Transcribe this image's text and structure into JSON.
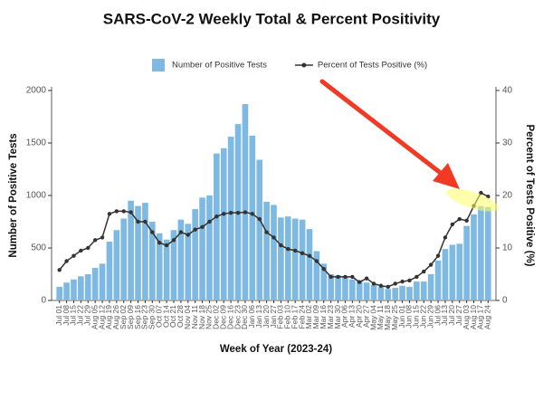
{
  "chart_data": {
    "type": "bar_line",
    "title": "SARS-CoV-2 Weekly Total & Percent Positivity",
    "x_label": "Week of Year (2023-24)",
    "y_label": "Number of Positive Tests",
    "y2_label": "Percent of Tests Positive (%)",
    "categories": [
      "Jul 01",
      "Jul 08",
      "Jul 15",
      "Jul 22",
      "Jul 29",
      "Aug 05",
      "Aug 12",
      "Aug 19",
      "Aug 26",
      "Sep 02",
      "Sep 09",
      "Sep 16",
      "Sep 23",
      "Sep 30",
      "Oct 07",
      "Oct 14",
      "Oct 21",
      "Oct 28",
      "Nov 04",
      "Nov 11",
      "Nov 18",
      "Nov 25",
      "Dec 02",
      "Dec 09",
      "Dec 16",
      "Dec 23",
      "Dec 30",
      "Jan 06",
      "Jan 13",
      "Jan 20",
      "Jan 27",
      "Feb 03",
      "Feb 10",
      "Feb 17",
      "Feb 24",
      "Mar 02",
      "Mar 09",
      "Mar 16",
      "Mar 23",
      "Mar 30",
      "Apr 06",
      "Apr 13",
      "Apr 20",
      "Apr 27",
      "May 04",
      "May 11",
      "May 18",
      "May 25",
      "Jun 01",
      "Jun 08",
      "Jun 15",
      "Jun 22",
      "Jun 29",
      "Jul 06",
      "Jul 13",
      "Jul 20",
      "Jul 27",
      "Aug 03",
      "Aug 10",
      "Aug 17",
      "Aug 24"
    ],
    "series": [
      {
        "name": "Number of Positive Tests",
        "type": "bar",
        "color": "#7db9e2",
        "values": [
          130,
          170,
          200,
          230,
          250,
          310,
          350,
          560,
          670,
          780,
          950,
          900,
          930,
          750,
          640,
          580,
          670,
          770,
          730,
          870,
          980,
          1000,
          1400,
          1450,
          1560,
          1680,
          1870,
          1570,
          1340,
          940,
          910,
          790,
          800,
          780,
          770,
          680,
          470,
          350,
          250,
          240,
          230,
          200,
          190,
          170,
          150,
          130,
          110,
          120,
          140,
          130,
          180,
          180,
          250,
          380,
          490,
          530,
          540,
          710,
          820,
          900,
          890
        ]
      },
      {
        "name": "Percent of Tests Positive (%)",
        "type": "line",
        "axis": "y2",
        "color": "#333333",
        "values": [
          5.8,
          7.5,
          8.5,
          9.5,
          10,
          11.5,
          12,
          16.5,
          17,
          17,
          16.8,
          15,
          15,
          13,
          11,
          10.5,
          11.5,
          13,
          12.5,
          13.5,
          14,
          15,
          16,
          16.5,
          16.7,
          16.7,
          16.8,
          16.5,
          15.5,
          13,
          12,
          10.5,
          9.8,
          9.5,
          9,
          8.5,
          7.5,
          6,
          4.5,
          4.5,
          4.5,
          4.5,
          3.5,
          4.2,
          3.2,
          2.8,
          2.6,
          3.2,
          3.6,
          3.8,
          4.5,
          5.5,
          6.8,
          8.5,
          12,
          14.5,
          15.5,
          15.2,
          18,
          20.5,
          19.8
        ]
      }
    ],
    "ylim": [
      0,
      2000
    ],
    "yticks": [
      0,
      500,
      1000,
      1500,
      2000
    ],
    "y2lim": [
      0,
      40
    ],
    "y2ticks": [
      0,
      10,
      20,
      30,
      40
    ],
    "grid": false,
    "legend": "top"
  }
}
